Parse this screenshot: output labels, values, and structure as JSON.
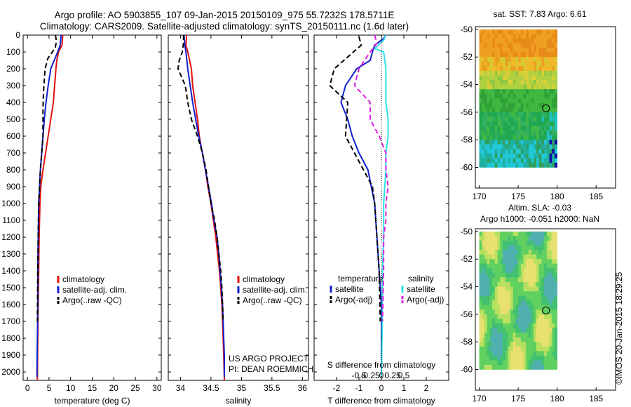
{
  "header": {
    "line1": "Argo profile: AO 5903855_107 09-Jan-2015 20150109_975 55.7232S 178.5711E",
    "line2": "Climatology: CARS2009. Satellite-adjusted climatology: synTS_20150111.nc (1.6d later)"
  },
  "colors": {
    "climatology": "#e01010",
    "satellite": "#1020d0",
    "argo": "#000000",
    "sat_salinity": "#30e0e8",
    "argo_salinity_adj": "#e020e0"
  },
  "chart_data": [
    {
      "type": "line",
      "id": "temperature",
      "xlabel": "temperature (deg C)",
      "ylabel": "",
      "xlim": [
        -1,
        31
      ],
      "ylim": [
        2050,
        0
      ],
      "xticks": [
        0,
        5,
        10,
        15,
        20,
        25,
        30
      ],
      "yticks": [
        0,
        100,
        200,
        300,
        400,
        500,
        600,
        700,
        800,
        900,
        1000,
        1100,
        1200,
        1300,
        1400,
        1500,
        1600,
        1700,
        1800,
        1900,
        2000
      ],
      "legend": [
        "climatology",
        "satellite-adj. clim.",
        "Argo(..raw -QC)"
      ],
      "series": [
        {
          "name": "climatology",
          "style": "solid",
          "color": "#e01010",
          "points": [
            [
              8.2,
              0
            ],
            [
              8.0,
              60
            ],
            [
              7.2,
              100
            ],
            [
              6.8,
              150
            ],
            [
              6.6,
              200
            ],
            [
              6.3,
              300
            ],
            [
              6.0,
              400
            ],
            [
              5.4,
              500
            ],
            [
              4.8,
              600
            ],
            [
              4.2,
              700
            ],
            [
              3.6,
              800
            ],
            [
              3.1,
              900
            ],
            [
              2.9,
              1000
            ],
            [
              2.7,
              1200
            ],
            [
              2.6,
              1400
            ],
            [
              2.5,
              1600
            ],
            [
              2.4,
              1800
            ],
            [
              2.3,
              2050
            ]
          ]
        },
        {
          "name": "satellite-adj. clim.",
          "style": "solid",
          "color": "#1020d0",
          "points": [
            [
              7.8,
              0
            ],
            [
              7.6,
              60
            ],
            [
              7.0,
              100
            ],
            [
              6.2,
              150
            ],
            [
              5.4,
              200
            ],
            [
              4.8,
              300
            ],
            [
              4.3,
              400
            ],
            [
              3.9,
              500
            ],
            [
              3.6,
              600
            ],
            [
              3.3,
              700
            ],
            [
              3.0,
              800
            ],
            [
              2.8,
              900
            ],
            [
              2.6,
              1000
            ],
            [
              2.5,
              1200
            ],
            [
              2.4,
              1400
            ],
            [
              2.4,
              1600
            ],
            [
              2.3,
              1800
            ],
            [
              2.2,
              2030
            ]
          ]
        },
        {
          "name": "Argo(..raw -QC)",
          "style": "dash",
          "color": "#000000",
          "points": [
            [
              6.5,
              0
            ],
            [
              6.7,
              40
            ],
            [
              6.4,
              80
            ],
            [
              5.9,
              95
            ],
            [
              4.7,
              140
            ],
            [
              4.1,
              200
            ],
            [
              3.9,
              260
            ],
            [
              3.7,
              350
            ],
            [
              3.6,
              450
            ],
            [
              3.6,
              600
            ],
            [
              3.3,
              700
            ],
            [
              3.0,
              800
            ],
            [
              2.8,
              900
            ],
            [
              2.6,
              1000
            ],
            [
              2.5,
              1200
            ],
            [
              2.4,
              1400
            ],
            [
              2.3,
              1700
            ]
          ]
        }
      ]
    },
    {
      "type": "line",
      "id": "salinity",
      "xlabel": "salinity",
      "ylabel": "",
      "xlim": [
        33.8,
        36.1
      ],
      "ylim": [
        2050,
        0
      ],
      "xticks": [
        34,
        34.5,
        35,
        35.5,
        36
      ],
      "legend": [
        "climatology",
        "satellite-adj. clim.",
        "Argo(..raw -QC)"
      ],
      "annotation": [
        "US ARGO PROJECT",
        "PI: DEAN ROEMMICH"
      ],
      "series": [
        {
          "name": "climatology",
          "style": "solid",
          "color": "#e01010",
          "points": [
            [
              34.1,
              0
            ],
            [
              34.09,
              60
            ],
            [
              34.12,
              100
            ],
            [
              34.18,
              200
            ],
            [
              34.2,
              300
            ],
            [
              34.24,
              400
            ],
            [
              34.28,
              500
            ],
            [
              34.31,
              600
            ],
            [
              34.36,
              700
            ],
            [
              34.41,
              800
            ],
            [
              34.45,
              900
            ],
            [
              34.5,
              1000
            ],
            [
              34.54,
              1100
            ],
            [
              34.58,
              1200
            ],
            [
              34.61,
              1300
            ],
            [
              34.64,
              1400
            ],
            [
              34.66,
              1500
            ],
            [
              34.68,
              1600
            ],
            [
              34.69,
              1700
            ],
            [
              34.7,
              1800
            ],
            [
              34.71,
              1900
            ],
            [
              34.72,
              2050
            ]
          ]
        },
        {
          "name": "satellite-adj. clim.",
          "style": "solid",
          "color": "#1020d0",
          "points": [
            [
              34.06,
              0
            ],
            [
              34.07,
              60
            ],
            [
              34.09,
              100
            ],
            [
              34.12,
              200
            ],
            [
              34.16,
              300
            ],
            [
              34.2,
              400
            ],
            [
              34.25,
              500
            ],
            [
              34.3,
              600
            ],
            [
              34.36,
              700
            ],
            [
              34.41,
              800
            ],
            [
              34.46,
              900
            ],
            [
              34.51,
              1000
            ],
            [
              34.55,
              1100
            ],
            [
              34.6,
              1200
            ],
            [
              34.63,
              1300
            ],
            [
              34.65,
              1400
            ],
            [
              34.67,
              1500
            ],
            [
              34.69,
              1600
            ],
            [
              34.7,
              1700
            ],
            [
              34.71,
              1800
            ],
            [
              34.72,
              1900
            ],
            [
              34.72,
              2030
            ]
          ]
        },
        {
          "name": "Argo(..raw -QC)",
          "style": "dash",
          "color": "#000000",
          "points": [
            [
              34.05,
              0
            ],
            [
              34.05,
              50
            ],
            [
              34.03,
              100
            ],
            [
              33.98,
              150
            ],
            [
              33.96,
              200
            ],
            [
              34.02,
              250
            ],
            [
              34.08,
              300
            ],
            [
              34.1,
              350
            ],
            [
              34.12,
              400
            ],
            [
              34.18,
              500
            ],
            [
              34.28,
              600
            ],
            [
              34.36,
              700
            ],
            [
              34.42,
              800
            ],
            [
              34.46,
              900
            ],
            [
              34.5,
              1000
            ],
            [
              34.56,
              1100
            ],
            [
              34.6,
              1200
            ],
            [
              34.63,
              1300
            ],
            [
              34.66,
              1400
            ],
            [
              34.68,
              1500
            ],
            [
              34.69,
              1600
            ],
            [
              34.7,
              1700
            ]
          ]
        }
      ]
    },
    {
      "type": "line",
      "id": "difference",
      "xlabel": "T difference from climatology",
      "xlabel2": "S difference from climatology",
      "ylabel": "",
      "xlim": [
        -3,
        3
      ],
      "ylim": [
        2050,
        0
      ],
      "xticks": [
        -2,
        -1,
        0,
        1,
        2
      ],
      "s_ticks": [
        "-0.5",
        "-0.25",
        "0",
        "0.25",
        "0.5"
      ],
      "legend_headers": [
        "temperature",
        "salinity"
      ],
      "legend": [
        "satellite",
        "Argo(-adj)",
        "satellite",
        "Argo(-adj)"
      ],
      "series": [
        {
          "name": "temperature satellite",
          "style": "solid",
          "color": "#1020d0",
          "points": [
            [
              0.2,
              0
            ],
            [
              0.1,
              20
            ],
            [
              -0.3,
              60
            ],
            [
              -0.4,
              100
            ],
            [
              -0.5,
              150
            ],
            [
              -1.1,
              200
            ],
            [
              -1.6,
              300
            ],
            [
              -1.8,
              400
            ],
            [
              -1.5,
              500
            ],
            [
              -1.3,
              600
            ],
            [
              -1.0,
              700
            ],
            [
              -0.6,
              800
            ],
            [
              -0.3,
              1000
            ],
            [
              -0.2,
              1200
            ],
            [
              -0.1,
              1400
            ],
            [
              0.0,
              1600
            ],
            [
              0.0,
              1800
            ],
            [
              0.0,
              2030
            ]
          ]
        },
        {
          "name": "temperature Argo(-adj)",
          "style": "dash",
          "color": "#000000",
          "points": [
            [
              -1.0,
              10
            ],
            [
              -0.9,
              60
            ],
            [
              -1.2,
              95
            ],
            [
              -2.1,
              200
            ],
            [
              -2.3,
              300
            ],
            [
              -1.5,
              400
            ],
            [
              -1.6,
              600
            ],
            [
              -1.2,
              700
            ],
            [
              -0.8,
              800
            ],
            [
              -0.4,
              900
            ],
            [
              -0.3,
              1000
            ],
            [
              -0.2,
              1200
            ],
            [
              -0.1,
              1400
            ],
            [
              -0.05,
              1700
            ]
          ]
        },
        {
          "name": "salinity satellite",
          "style": "solid",
          "color": "#30e0e8",
          "points": [
            [
              0.2,
              0
            ],
            [
              0.1,
              30
            ],
            [
              -0.3,
              80
            ],
            [
              0.1,
              100
            ],
            [
              0.2,
              200
            ],
            [
              0.2,
              300
            ],
            [
              0.2,
              400
            ],
            [
              0.3,
              500
            ],
            [
              0.3,
              600
            ],
            [
              0.2,
              700
            ],
            [
              0.2,
              800
            ],
            [
              0.1,
              1000
            ],
            [
              0.1,
              1200
            ],
            [
              0.05,
              1400
            ],
            [
              0.05,
              1600
            ],
            [
              0.0,
              2030
            ]
          ]
        },
        {
          "name": "salinity Argo(-adj)",
          "style": "dash",
          "color": "#e020e0",
          "points": [
            [
              -0.3,
              0
            ],
            [
              -0.2,
              50
            ],
            [
              -0.5,
              100
            ],
            [
              -1.0,
              200
            ],
            [
              -1.2,
              300
            ],
            [
              -0.5,
              400
            ],
            [
              -0.5,
              500
            ],
            [
              -0.1,
              600
            ],
            [
              0.2,
              700
            ],
            [
              0.2,
              800
            ],
            [
              0.3,
              900
            ],
            [
              0.2,
              1000
            ],
            [
              0.2,
              1100
            ],
            [
              0.1,
              1200
            ],
            [
              0.1,
              1400
            ],
            [
              0.05,
              1700
            ]
          ]
        }
      ]
    },
    {
      "type": "heatmap",
      "id": "sst-map",
      "title": "sat. SST: 7.83 Argo: 6.61",
      "xlim": [
        169.5,
        187.5
      ],
      "ylim": [
        -61.5,
        -49.8
      ],
      "xticks": [
        170,
        175,
        180,
        185
      ],
      "yticks": [
        -50,
        -52,
        -54,
        -56,
        -58,
        -60
      ],
      "data_extent": {
        "lon": [
          170,
          180
        ],
        "lat": [
          -60,
          -50
        ]
      },
      "float_position": {
        "lon": 178.57,
        "lat": -55.72
      }
    },
    {
      "type": "heatmap",
      "id": "sla-map",
      "title": "Altim. SLA: -0.03",
      "subtitle": "Argo h1000: -0.051 h2000: NaN",
      "xlim": [
        169.5,
        187.5
      ],
      "ylim": [
        -61.5,
        -49.8
      ],
      "xticks": [
        170,
        175,
        180,
        185
      ],
      "yticks": [
        -50,
        -52,
        -54,
        -56,
        -58,
        -60
      ],
      "data_extent": {
        "lon": [
          170,
          180
        ],
        "lat": [
          -60,
          -50
        ]
      },
      "float_position": {
        "lon": 178.57,
        "lat": -55.72
      }
    }
  ],
  "footer": {
    "copyright": "©IMOS 20-Jan-2015 18:29:25"
  }
}
